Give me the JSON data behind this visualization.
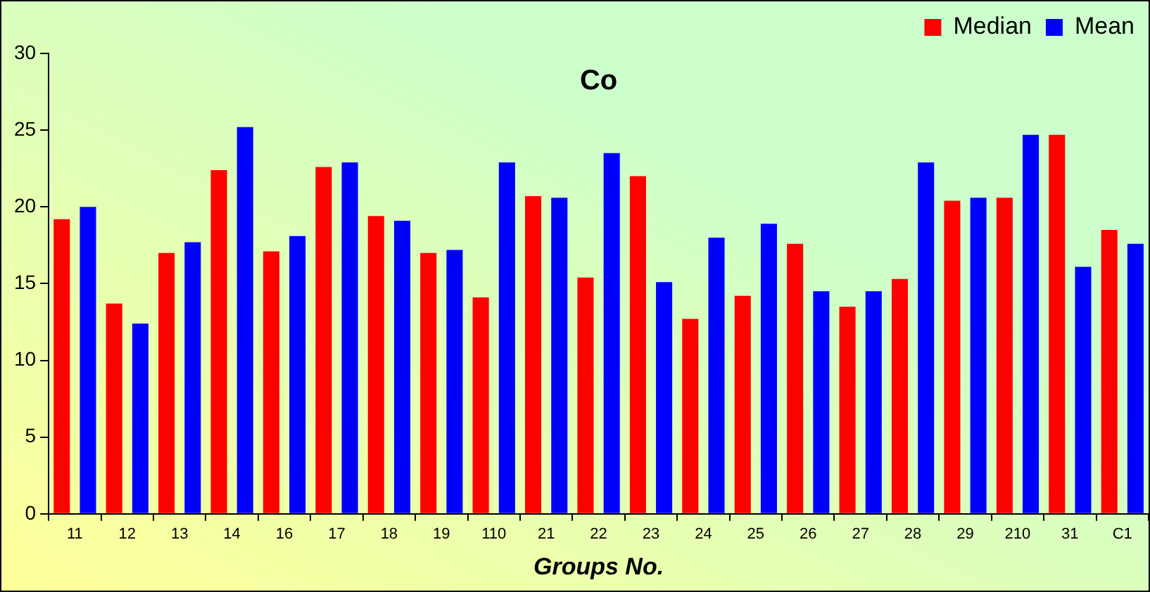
{
  "chart_data": {
    "type": "bar",
    "title": "Co",
    "xlabel": "Groups No.",
    "categories": [
      "11",
      "12",
      "13",
      "14",
      "16",
      "17",
      "18",
      "19",
      "110",
      "21",
      "22",
      "23",
      "24",
      "25",
      "26",
      "27",
      "28",
      "29",
      "210",
      "31",
      "C1"
    ],
    "series": [
      {
        "name": "Median",
        "color": "#ff0000",
        "values": [
          19.2,
          13.7,
          17.0,
          22.4,
          17.1,
          22.6,
          19.4,
          17.0,
          14.1,
          20.7,
          15.4,
          22.0,
          12.7,
          14.2,
          17.6,
          13.5,
          15.3,
          20.4,
          20.6,
          24.7,
          18.5
        ]
      },
      {
        "name": "Mean",
        "color": "#0000ff",
        "values": [
          20.0,
          12.4,
          17.7,
          25.2,
          18.1,
          22.9,
          19.1,
          17.2,
          22.9,
          20.6,
          23.5,
          15.1,
          18.0,
          18.9,
          14.5,
          14.5,
          22.9,
          20.6,
          24.7,
          16.1,
          17.6
        ]
      }
    ],
    "ylim": [
      0,
      30
    ],
    "yticks": [
      0,
      5,
      10,
      15,
      20,
      25,
      30
    ],
    "grid": false,
    "legend": "top right"
  }
}
